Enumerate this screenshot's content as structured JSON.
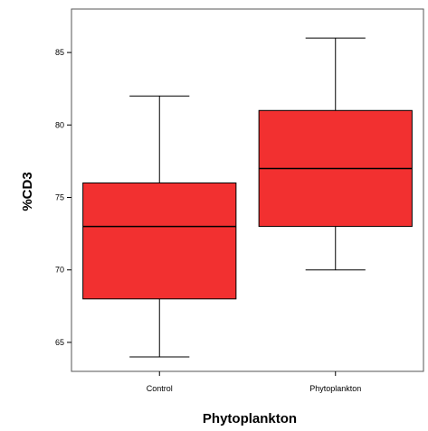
{
  "chart_data": {
    "type": "boxplot",
    "title": "",
    "xlabel": "Phytoplankton",
    "ylabel": "%CD3",
    "ylim": [
      63,
      88
    ],
    "yticks": [
      65,
      70,
      75,
      80,
      85
    ],
    "categories": [
      "Control",
      "Phytoplankton"
    ],
    "boxes": [
      {
        "category": "Control",
        "min": 64,
        "q1": 68,
        "median": 73,
        "q3": 76,
        "max": 82
      },
      {
        "category": "Phytoplankton",
        "min": 70,
        "q1": 73,
        "median": 77,
        "q3": 81,
        "max": 86
      }
    ],
    "box_color": "#f23030",
    "grid": false
  }
}
